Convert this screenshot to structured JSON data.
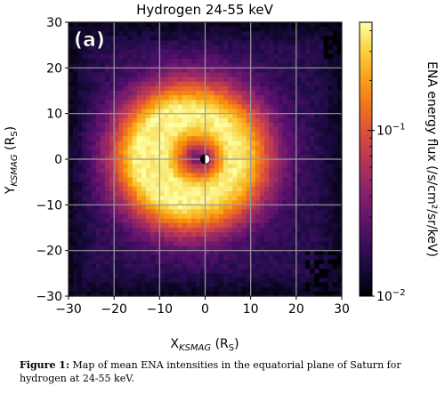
{
  "chart_data": {
    "type": "heatmap",
    "title": "Hydrogen 24-55 keV",
    "panel_label": "(a)",
    "xlabel_main": "X",
    "xlabel_sub": "KSMAG",
    "xlabel_unit": "(R",
    "xlabel_unit_sub": "S",
    "xlabel_unit_close": ")",
    "ylabel_main": "Y",
    "ylabel_sub": "KSMAG",
    "ylabel_unit": "(R",
    "ylabel_unit_sub": "S",
    "ylabel_unit_close": ")",
    "xlim": [
      -30,
      30
    ],
    "ylim": [
      -30,
      30
    ],
    "x_ticks": [
      {
        "value": -30,
        "label": "−30"
      },
      {
        "value": -20,
        "label": "−20"
      },
      {
        "value": -10,
        "label": "−10"
      },
      {
        "value": 0,
        "label": "0"
      },
      {
        "value": 10,
        "label": "10"
      },
      {
        "value": 20,
        "label": "20"
      },
      {
        "value": 30,
        "label": "30"
      }
    ],
    "y_ticks": [
      {
        "value": -30,
        "label": "−30"
      },
      {
        "value": -20,
        "label": "−20"
      },
      {
        "value": -10,
        "label": "−10"
      },
      {
        "value": 0,
        "label": "0"
      },
      {
        "value": 10,
        "label": "10"
      },
      {
        "value": 20,
        "label": "20"
      },
      {
        "value": 30,
        "label": "30"
      }
    ],
    "grid": true,
    "colorbar": {
      "label": "ENA energy flux (/s/cm²/sr/keV)",
      "scale": "log",
      "range": [
        0.01,
        0.45
      ],
      "ticks": [
        {
          "value": 0.1,
          "base": "10",
          "exp": "−1"
        },
        {
          "value": 0.01,
          "base": "10",
          "exp": "−2"
        }
      ],
      "colormap": "inferno"
    },
    "field": {
      "description_units": "log10 flux, Saturn at origin",
      "peak_ring_radius": 9,
      "peak_center_x": -2.5,
      "peak_center_y": 0.5,
      "peak_log10_flux": -0.4,
      "background_log10_flux": -1.75
    },
    "planet_marker": {
      "x": 0,
      "y": 0
    }
  },
  "caption": {
    "label": "Figure 1:",
    "text": "Map of mean ENA intensities in the equatorial plane of Saturn for hydrogen at 24-55 keV."
  }
}
